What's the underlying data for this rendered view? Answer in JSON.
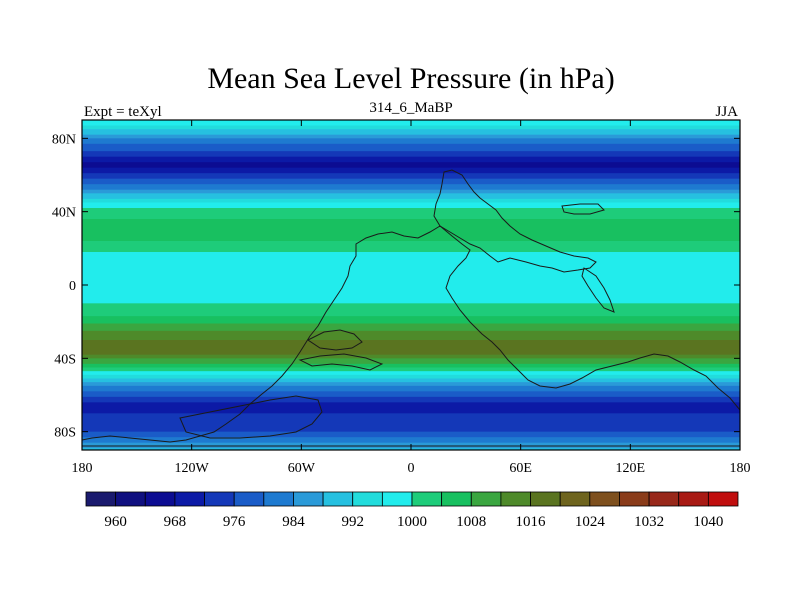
{
  "title": "Mean Sea Level Pressure (in hPa)",
  "left_label": "Expt = teXyl",
  "center_label": "314_6_MaBP",
  "right_label": "JJA",
  "lat_ticks": [
    "80N",
    "40N",
    "0",
    "40S",
    "80S"
  ],
  "lon_ticks": [
    "180",
    "120W",
    "60W",
    "0",
    "60E",
    "120E",
    "180"
  ],
  "colorbar": {
    "labels": [
      "960",
      "968",
      "976",
      "984",
      "992",
      "1000",
      "1008",
      "1016",
      "1024",
      "1032",
      "1040"
    ],
    "colors": [
      "#1a1a6e",
      "#101080",
      "#0c0c92",
      "#0c1aa6",
      "#1438b8",
      "#1a5cc8",
      "#1e7ad0",
      "#2a9ad8",
      "#26c0e0",
      "#22dcdc",
      "#22ecec",
      "#1ecc7a",
      "#18c060",
      "#3aa640",
      "#4e8a2a",
      "#5a7420",
      "#6e641e",
      "#7e501e",
      "#8a3c1a",
      "#98281a",
      "#a81a14",
      "#c00e0e"
    ]
  },
  "chart_data": {
    "type": "heatmap",
    "title": "Mean Sea Level Pressure (in hPa)",
    "units": "hPa",
    "xlim": [
      -180,
      180
    ],
    "ylim": [
      -90,
      90
    ],
    "x_ticks": [
      -180,
      -120,
      -60,
      0,
      60,
      120,
      180
    ],
    "y_ticks": [
      80,
      40,
      0,
      -40,
      -80
    ],
    "levels": [
      960,
      968,
      976,
      984,
      992,
      1000,
      1008,
      1016,
      1024,
      1032,
      1040
    ],
    "zonal_profile": [
      {
        "lat": 90,
        "value": 1000
      },
      {
        "lat": 80,
        "value": 984
      },
      {
        "lat": 65,
        "value": 966
      },
      {
        "lat": 52,
        "value": 984
      },
      {
        "lat": 42,
        "value": 1000
      },
      {
        "lat": 30,
        "value": 1008
      },
      {
        "lat": 18,
        "value": 1000
      },
      {
        "lat": 0,
        "value": 996
      },
      {
        "lat": -15,
        "value": 1002
      },
      {
        "lat": -25,
        "value": 1012
      },
      {
        "lat": -35,
        "value": 1020
      },
      {
        "lat": -45,
        "value": 1004
      },
      {
        "lat": -55,
        "value": 984
      },
      {
        "lat": -65,
        "value": 970
      },
      {
        "lat": -80,
        "value": 976
      },
      {
        "lat": -90,
        "value": 990
      }
    ]
  }
}
